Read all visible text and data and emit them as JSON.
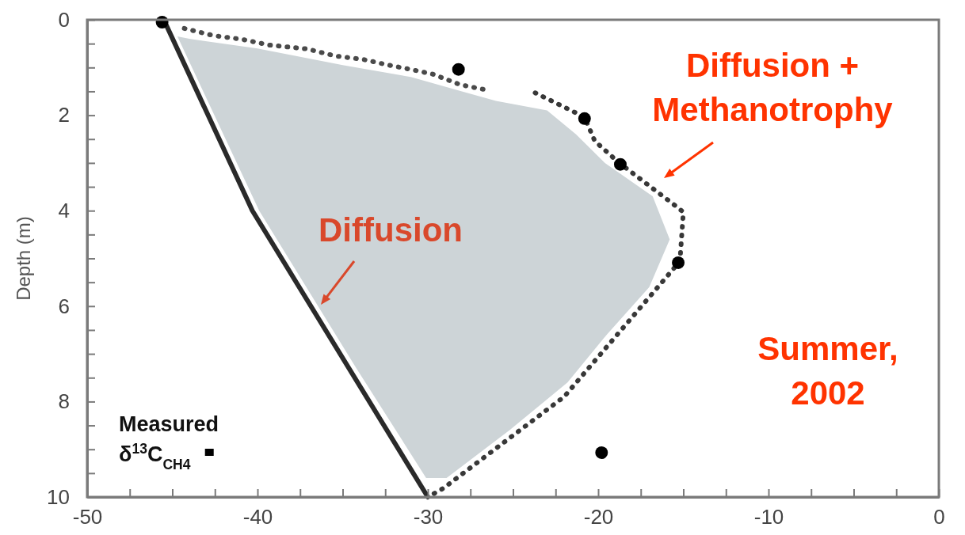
{
  "chart_data": {
    "type": "line",
    "ylabel": "Depth (m)",
    "xlim": [
      -50,
      0
    ],
    "ylim": [
      10,
      0
    ],
    "xticks": [
      -50,
      {
        "value": -47.5,
        "label": null
      },
      {
        "value": -45,
        "label": null
      },
      {
        "value": -42.5,
        "label": null
      },
      -40,
      {
        "value": -37.5,
        "label": null
      },
      {
        "value": -35,
        "label": null
      },
      {
        "value": -32.5,
        "label": null
      },
      -30,
      {
        "value": -27.5,
        "label": null
      },
      {
        "value": -25,
        "label": null
      },
      {
        "value": -22.5,
        "label": null
      },
      -20,
      {
        "value": -17.5,
        "label": null
      },
      {
        "value": -15,
        "label": null
      },
      {
        "value": -12.5,
        "label": null
      },
      -10,
      {
        "value": -7.5,
        "label": null
      },
      {
        "value": -5,
        "label": null
      },
      {
        "value": -2.5,
        "label": null
      },
      0
    ],
    "yticks": [
      0,
      {
        "value": 0.5,
        "label": null
      },
      {
        "value": 1,
        "label": null
      },
      {
        "value": 1.5,
        "label": null
      },
      2,
      {
        "value": 2.5,
        "label": null
      },
      {
        "value": 3,
        "label": null
      },
      {
        "value": 3.5,
        "label": null
      },
      4,
      {
        "value": 4.5,
        "label": null
      },
      {
        "value": 5,
        "label": null
      },
      {
        "value": 5.5,
        "label": null
      },
      6,
      {
        "value": 6.5,
        "label": null
      },
      {
        "value": 7,
        "label": null
      },
      {
        "value": 7.5,
        "label": null
      },
      8,
      {
        "value": 8.5,
        "label": null
      },
      {
        "value": 9,
        "label": null
      },
      {
        "value": 9.5,
        "label": null
      },
      10
    ],
    "grid": false,
    "legend": "bottom left",
    "series": [
      {
        "color": "#2a2a2a",
        "line_style": "solid",
        "marker": "none",
        "x": [
          -45.5,
          -40.3,
          -30
        ],
        "values": [
          0,
          4,
          10
        ]
      },
      {
        "color": "#4a4a4a",
        "line_style": "dotted",
        "marker": "none",
        "x": [
          -44.3,
          -42.6,
          -40.9,
          -39.3,
          -37.1,
          -35.4,
          -33.8,
          -32.3,
          -31,
          -29.7,
          -28.1,
          -26.7
        ],
        "values": [
          0.18,
          0.33,
          0.41,
          0.53,
          0.61,
          0.76,
          0.83,
          0.95,
          1.04,
          1.14,
          1.36,
          1.46
        ]
      },
      {
        "color": "#383838",
        "line_style": "dotted",
        "marker": "none",
        "x": [
          -23.7,
          -20.8,
          -20.2,
          -18.8,
          -15.6,
          -15,
          -15.2,
          -22,
          -29.1,
          -30
        ],
        "values": [
          1.53,
          2.04,
          2.54,
          2.99,
          3.86,
          4.03,
          5.06,
          7.9,
          9.82,
          10
        ]
      },
      {
        "type": "scatter",
        "name": "Measured δ$^{13}$C$_{CH4}$",
        "color": "#000000",
        "marker": "circle",
        "x": [
          -45.6,
          -28.2,
          -20.8,
          -18.7,
          -15.3,
          -19.8
        ],
        "values": [
          0.05,
          1.04,
          2.07,
          3.03,
          5.09,
          9.07
        ]
      },
      {
        "type": "area",
        "color": "#cdd4d7",
        "x": [
          -44.7,
          -44,
          -40,
          -35,
          -31,
          -28,
          -26,
          -23,
          -21.3,
          -19.6,
          -16.8,
          -15.8,
          -17,
          -19.5,
          -21.8,
          -25.2,
          -28.9,
          -30.1,
          -34.2,
          -39.9,
          -44.7
        ],
        "values": [
          0.35,
          0.4,
          0.6,
          0.95,
          1.2,
          1.5,
          1.7,
          1.9,
          2.4,
          3,
          3.7,
          4.6,
          5.6,
          6.6,
          7.6,
          8.6,
          9.6,
          9.6,
          7.3,
          4,
          0.35
        ]
      }
    ],
    "annotations": [
      "Diffusion",
      "Diffusion +\nMethanotrophy",
      "Summer,\n2002"
    ]
  }
}
